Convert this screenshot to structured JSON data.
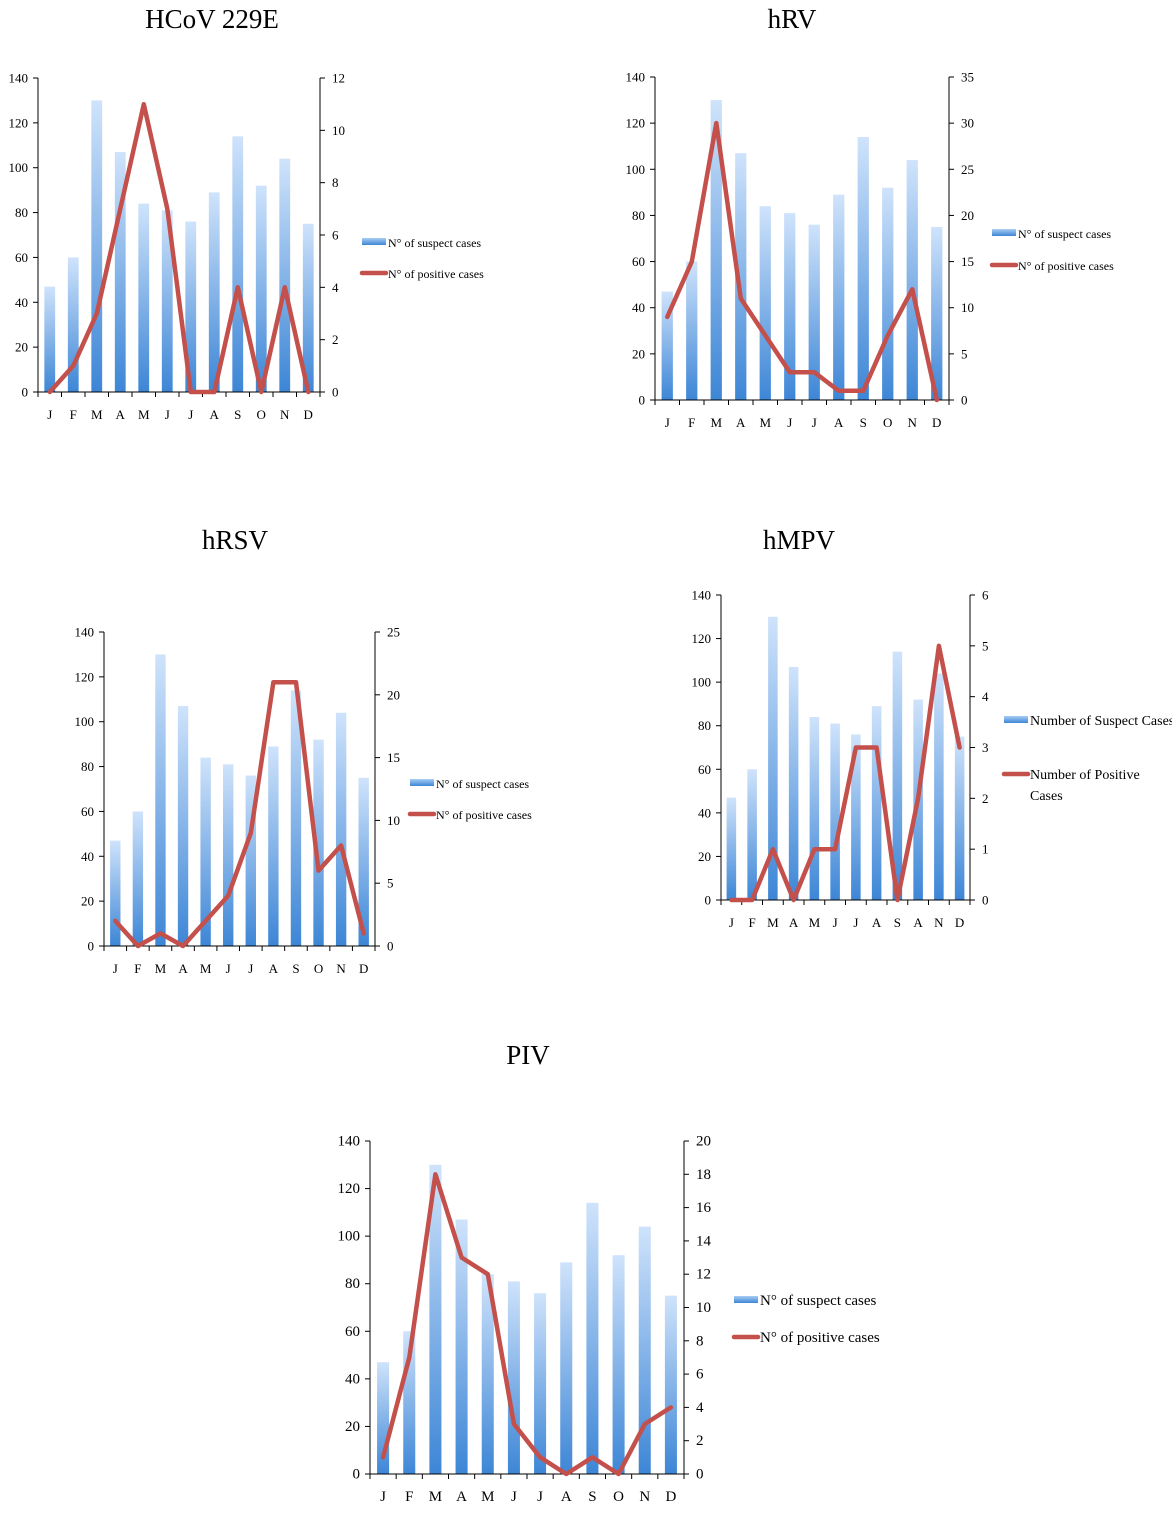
{
  "colors": {
    "bar_top": "#cfe3fb",
    "bar_bottom": "#3d86d6",
    "line": "#c4504c",
    "axis": "#000000"
  },
  "chart_data": [
    {
      "type": "bar+line",
      "title": "HCoV 229E",
      "categories": [
        "J",
        "F",
        "M",
        "A",
        "M",
        "J",
        "J",
        "A",
        "S",
        "O",
        "N",
        "D"
      ],
      "series": [
        {
          "name": "N° of suspect cases",
          "type": "bar",
          "axis": "left",
          "values": [
            47,
            60,
            130,
            107,
            84,
            81,
            76,
            89,
            114,
            92,
            104,
            75
          ]
        },
        {
          "name": "N° of positive cases",
          "type": "line",
          "axis": "right",
          "values": [
            0,
            1,
            3,
            7,
            11,
            7,
            0,
            0,
            4,
            0,
            4,
            0
          ]
        }
      ],
      "y_left": {
        "min": 0,
        "max": 140,
        "step": 20
      },
      "y_right": {
        "min": 0,
        "max": 12,
        "step": 2
      },
      "legend_position": "right"
    },
    {
      "type": "bar+line",
      "title": "hRV",
      "categories": [
        "J",
        "F",
        "M",
        "A",
        "M",
        "J",
        "J",
        "A",
        "S",
        "O",
        "N",
        "D"
      ],
      "series": [
        {
          "name": "N° of suspect cases",
          "type": "bar",
          "axis": "left",
          "values": [
            47,
            60,
            130,
            107,
            84,
            81,
            76,
            89,
            114,
            92,
            104,
            75
          ]
        },
        {
          "name": "N° of positive cases",
          "type": "line",
          "axis": "right",
          "values": [
            9,
            15,
            30,
            11,
            7,
            3,
            3,
            1,
            1,
            7,
            12,
            0
          ]
        }
      ],
      "y_left": {
        "min": 0,
        "max": 140,
        "step": 20
      },
      "y_right": {
        "min": 0,
        "max": 35,
        "step": 5
      },
      "legend_position": "right"
    },
    {
      "type": "bar+line",
      "title": "hRSV",
      "categories": [
        "J",
        "F",
        "M",
        "A",
        "M",
        "J",
        "J",
        "A",
        "S",
        "O",
        "N",
        "D"
      ],
      "series": [
        {
          "name": "N° of suspect cases",
          "type": "bar",
          "axis": "left",
          "values": [
            47,
            60,
            130,
            107,
            84,
            81,
            76,
            89,
            114,
            92,
            104,
            75
          ]
        },
        {
          "name": "N° of positive cases",
          "type": "line",
          "axis": "right",
          "values": [
            2,
            0,
            1,
            0,
            2,
            4,
            9,
            21,
            21,
            6,
            8,
            1
          ]
        }
      ],
      "y_left": {
        "min": 0,
        "max": 140,
        "step": 20
      },
      "y_right": {
        "min": 0,
        "max": 25,
        "step": 5
      },
      "legend_position": "right"
    },
    {
      "type": "bar+line",
      "title": "hMPV",
      "categories": [
        "J",
        "F",
        "M",
        "A",
        "M",
        "J",
        "J",
        "A",
        "S",
        "A",
        "N",
        "D"
      ],
      "series": [
        {
          "name": "Number of Suspect Cases",
          "type": "bar",
          "axis": "left",
          "values": [
            47,
            60,
            130,
            107,
            84,
            81,
            76,
            89,
            114,
            92,
            104,
            75
          ]
        },
        {
          "name": "Number of Positive Cases",
          "type": "line",
          "axis": "right",
          "values": [
            0,
            0,
            1,
            0,
            1,
            1,
            3,
            3,
            0,
            2,
            5,
            3
          ]
        }
      ],
      "y_left": {
        "min": 0,
        "max": 140,
        "step": 20
      },
      "y_right": {
        "min": 0,
        "max": 6,
        "step": 1
      },
      "legend_position": "right"
    },
    {
      "type": "bar+line",
      "title": "PIV",
      "categories": [
        "J",
        "F",
        "M",
        "A",
        "M",
        "J",
        "J",
        "A",
        "S",
        "O",
        "N",
        "D"
      ],
      "series": [
        {
          "name": "N° of suspect cases",
          "type": "bar",
          "axis": "left",
          "values": [
            47,
            60,
            130,
            107,
            84,
            81,
            76,
            89,
            114,
            92,
            104,
            75
          ]
        },
        {
          "name": "N° of positive cases",
          "type": "line",
          "axis": "right",
          "values": [
            1,
            7,
            18,
            13,
            12,
            3,
            1,
            0,
            1,
            0,
            3,
            4
          ]
        }
      ],
      "y_left": {
        "min": 0,
        "max": 140,
        "step": 20
      },
      "y_right": {
        "min": 0,
        "max": 20,
        "step": 2
      },
      "legend_position": "right"
    }
  ]
}
